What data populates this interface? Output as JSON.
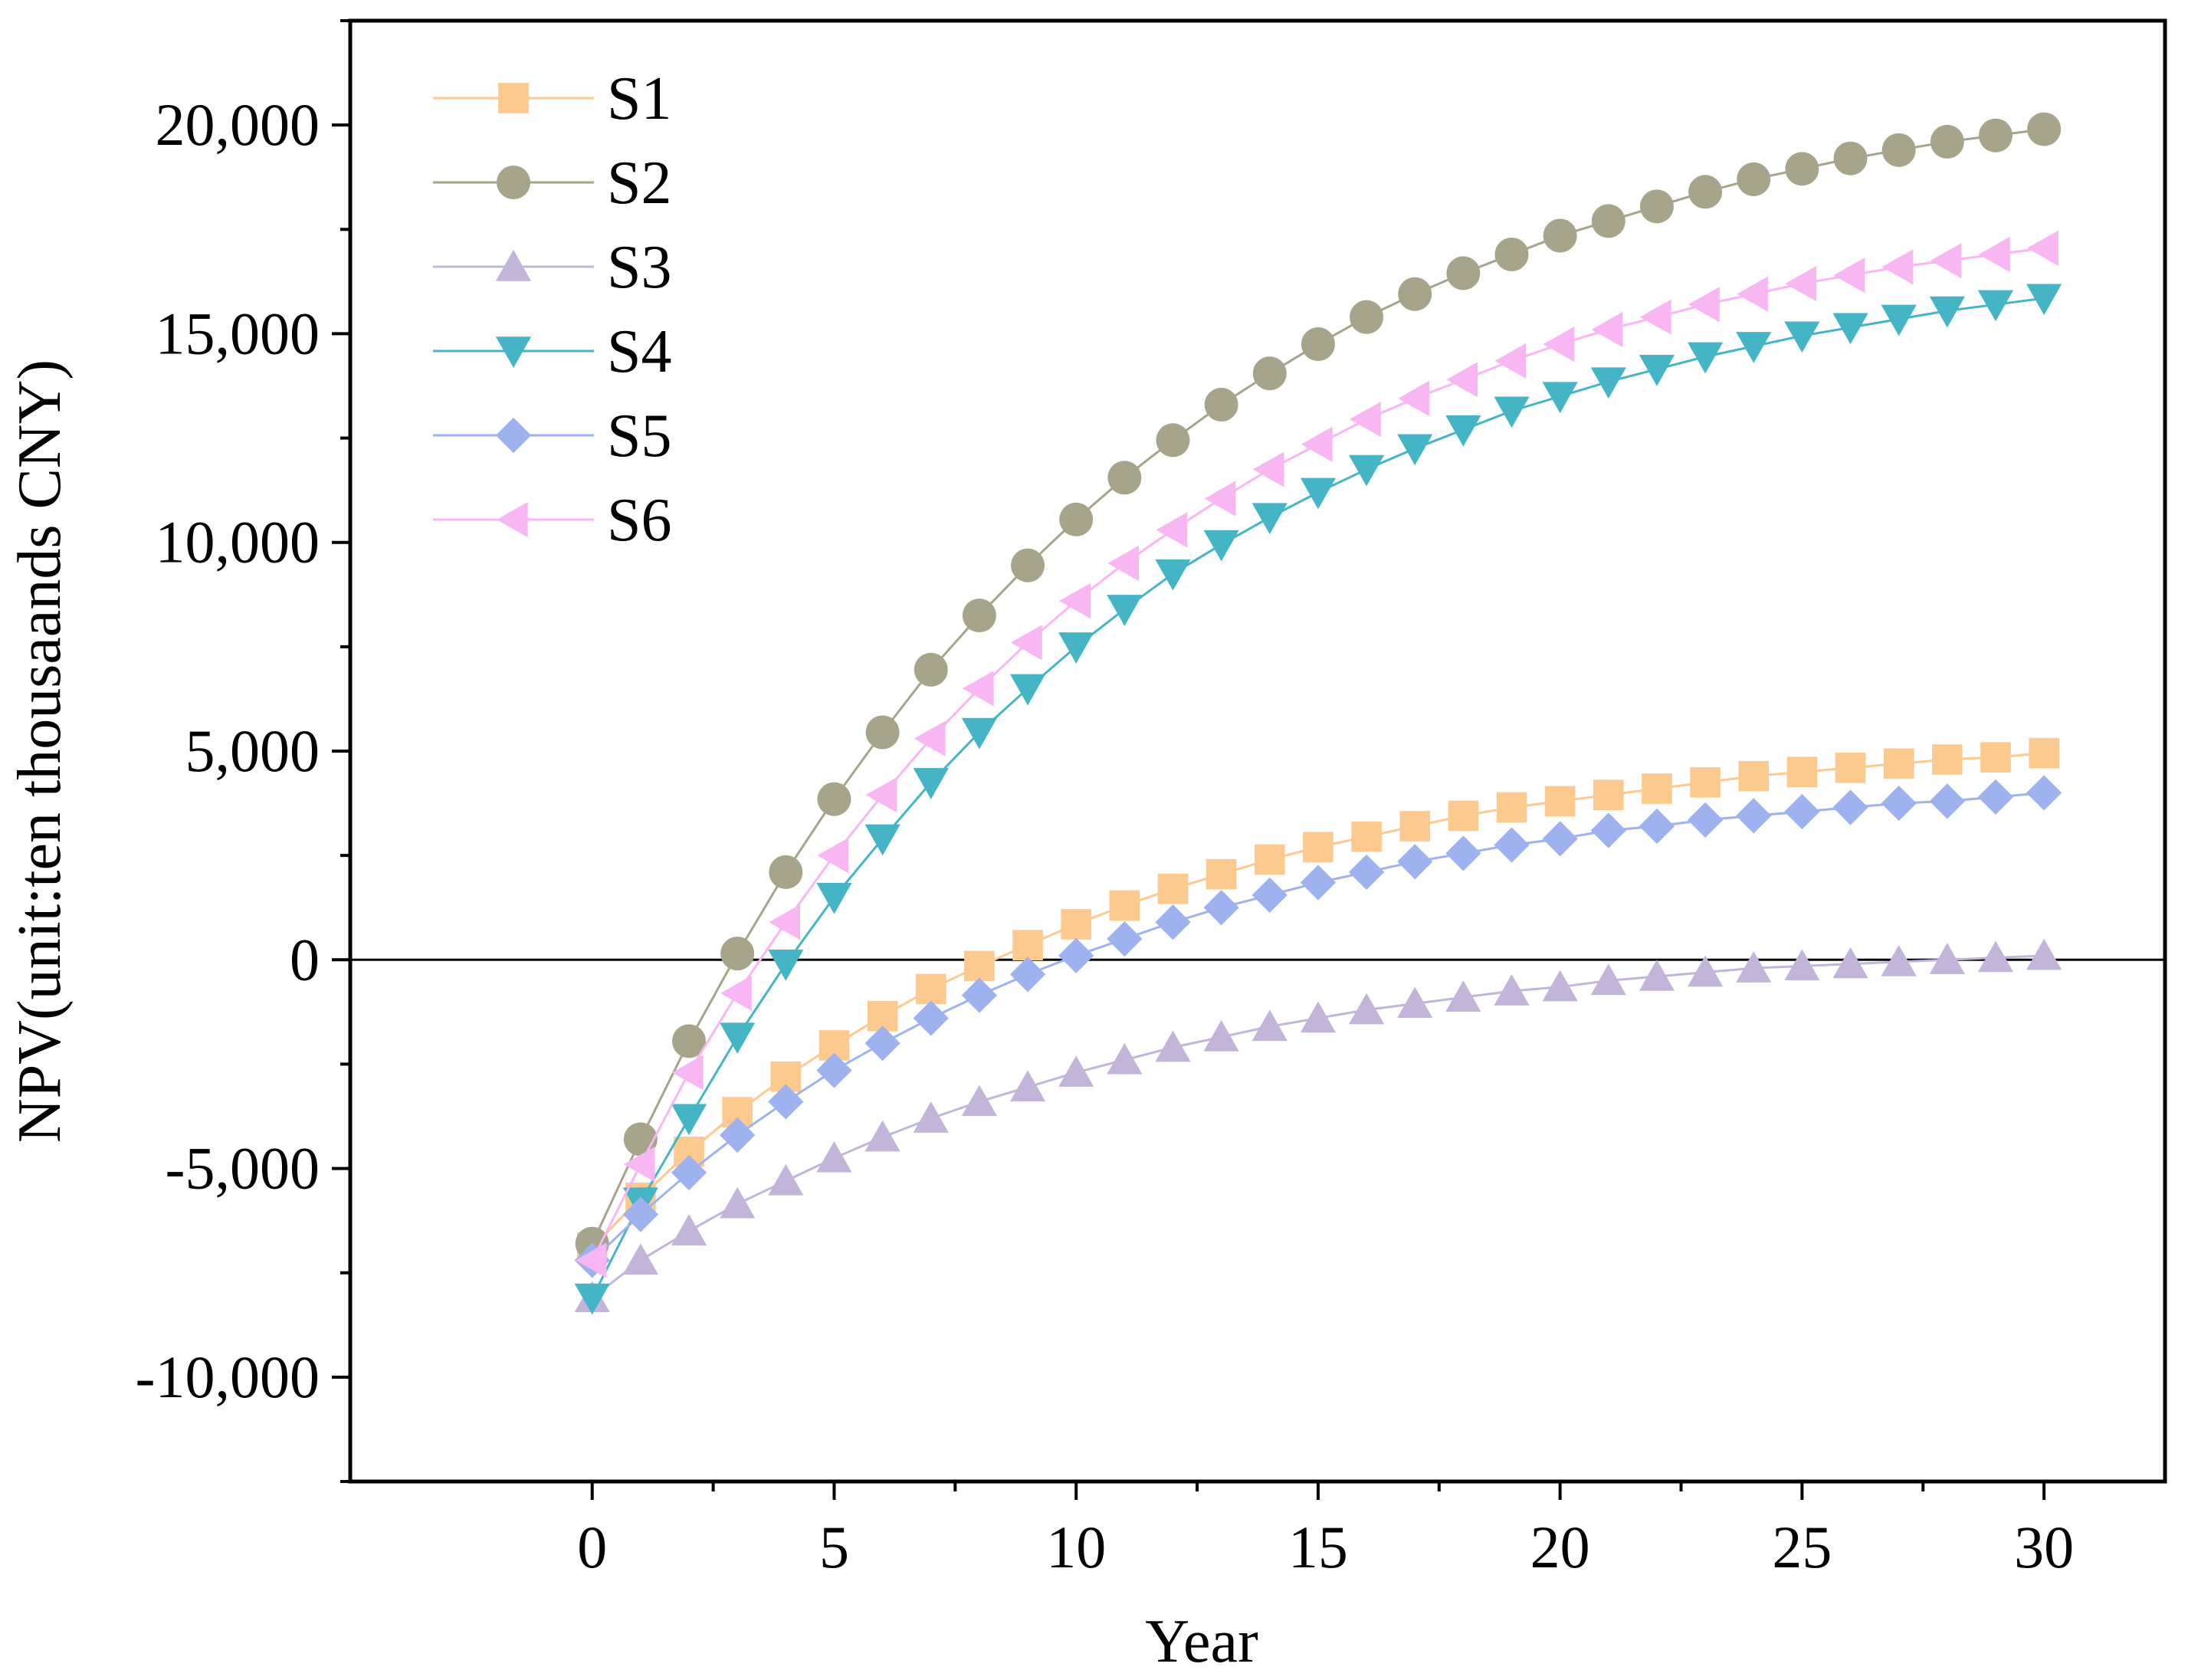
{
  "chart_data": {
    "type": "line",
    "title": "",
    "xlabel": "Year",
    "ylabel": "NPV(unit:ten thousaands CNY)",
    "xlim": [
      -5,
      32.5
    ],
    "ylim": [
      -12500,
      22500
    ],
    "x_ticks": [
      0,
      5,
      10,
      15,
      20,
      25,
      30
    ],
    "x_tick_labels": [
      "0",
      "5",
      "10",
      "15",
      "20",
      "25",
      "30"
    ],
    "y_ticks": [
      -10000,
      -5000,
      0,
      5000,
      10000,
      15000,
      20000
    ],
    "y_tick_labels": [
      "-10,000",
      "-5,000",
      "0",
      "5,000",
      "10,000",
      "15,000",
      "20,000"
    ],
    "reference_line_y": 0,
    "grid": false,
    "legend_position": "top-left",
    "x": [
      0,
      1,
      2,
      3,
      4,
      5,
      6,
      7,
      8,
      9,
      10,
      11,
      12,
      13,
      14,
      15,
      16,
      17,
      18,
      19,
      20,
      21,
      22,
      23,
      24,
      25,
      26,
      27,
      28,
      29,
      30
    ],
    "series": [
      {
        "name": "S1",
        "marker": "square",
        "color": "#FCC98E",
        "values": [
          -6900,
          -5700,
          -4600,
          -3650,
          -2800,
          -2050,
          -1350,
          -700,
          -150,
          350,
          850,
          1300,
          1700,
          2050,
          2400,
          2700,
          2950,
          3200,
          3450,
          3650,
          3800,
          3950,
          4100,
          4250,
          4400,
          4500,
          4600,
          4700,
          4800,
          4850,
          4950
        ]
      },
      {
        "name": "S2",
        "marker": "circle",
        "color": "#A6A48A",
        "values": [
          -6800,
          -4300,
          -1950,
          150,
          2100,
          3850,
          5450,
          6950,
          8250,
          9450,
          10550,
          11550,
          12450,
          13300,
          14050,
          14750,
          15400,
          15950,
          16450,
          16900,
          17350,
          17700,
          18050,
          18400,
          18700,
          18950,
          19200,
          19400,
          19600,
          19750,
          19900
        ]
      },
      {
        "name": "S3",
        "marker": "triangle-up",
        "color": "#C3B5D9",
        "values": [
          -8100,
          -7200,
          -6500,
          -5850,
          -5300,
          -4750,
          -4250,
          -3800,
          -3400,
          -3050,
          -2700,
          -2400,
          -2100,
          -1850,
          -1600,
          -1400,
          -1200,
          -1050,
          -900,
          -750,
          -650,
          -500,
          -400,
          -300,
          -200,
          -150,
          -100,
          -50,
          0,
          50,
          100
        ]
      },
      {
        "name": "S4",
        "marker": "triangle-down",
        "color": "#45B5C6",
        "values": [
          -8100,
          -5800,
          -3800,
          -1850,
          -100,
          1500,
          2900,
          4250,
          5450,
          6500,
          7500,
          8400,
          9250,
          9950,
          10600,
          11200,
          11750,
          12250,
          12700,
          13150,
          13500,
          13850,
          14150,
          14450,
          14700,
          14950,
          15150,
          15350,
          15550,
          15700,
          15850
        ]
      },
      {
        "name": "S5",
        "marker": "diamond",
        "color": "#9EB2F0",
        "values": [
          -7200,
          -6100,
          -5100,
          -4200,
          -3400,
          -2650,
          -2000,
          -1400,
          -850,
          -350,
          100,
          500,
          900,
          1250,
          1550,
          1850,
          2100,
          2350,
          2550,
          2750,
          2900,
          3100,
          3200,
          3350,
          3450,
          3550,
          3650,
          3750,
          3800,
          3900,
          4000
        ]
      },
      {
        "name": "S6",
        "marker": "triangle-left",
        "color": "#F8B6F2",
        "values": [
          -7200,
          -4900,
          -2700,
          -800,
          900,
          2500,
          3950,
          5300,
          6500,
          7600,
          8600,
          9500,
          10300,
          11050,
          11750,
          12350,
          12950,
          13450,
          13900,
          14350,
          14750,
          15100,
          15400,
          15700,
          15950,
          16200,
          16400,
          16600,
          16750,
          16900,
          17050
        ]
      }
    ]
  }
}
